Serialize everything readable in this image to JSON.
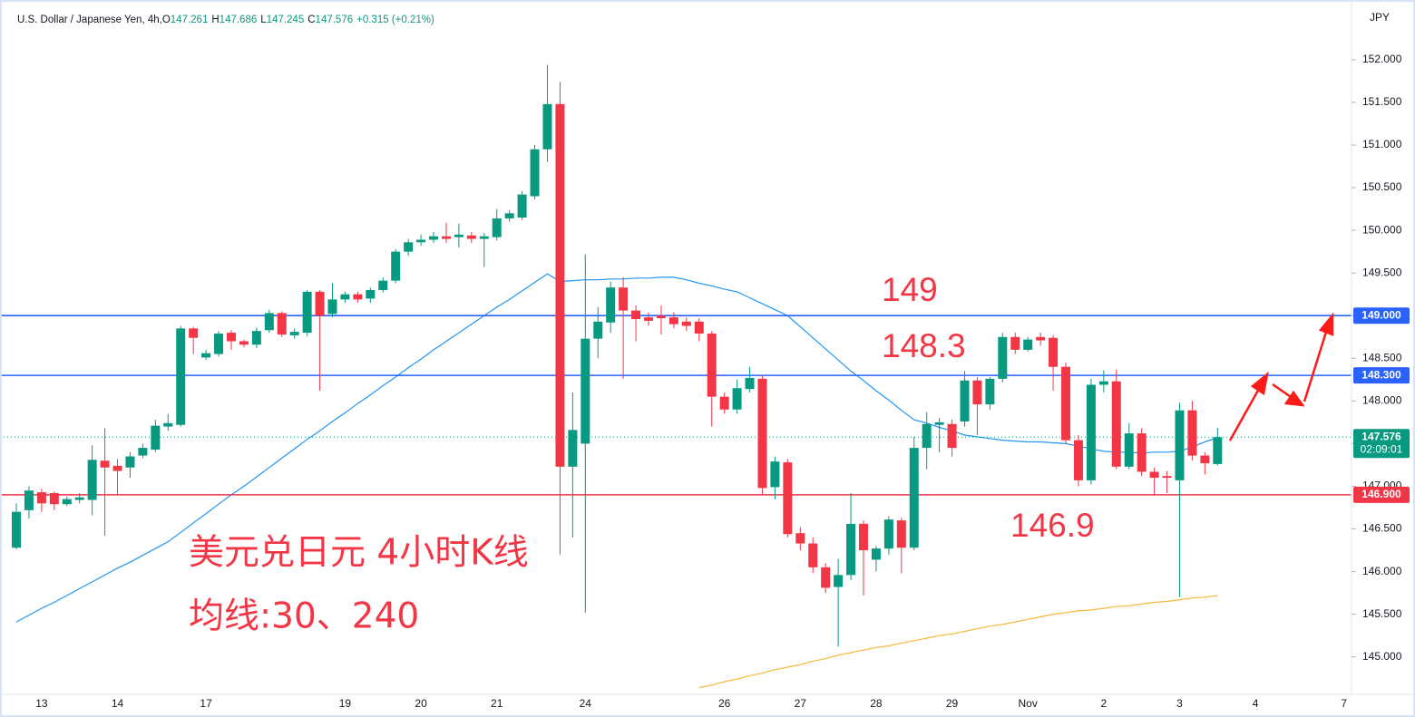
{
  "chart_data": {
    "type": "candlestick",
    "title": "U.S. Dollar / Japanese Yen, 4h,",
    "ohlc_header": [
      {
        "key": "O",
        "text": "147.261"
      },
      {
        "key": "H",
        "text": "147.686"
      },
      {
        "key": "L",
        "text": "147.245"
      },
      {
        "key": "C",
        "text": "147.576"
      }
    ],
    "change": "+0.315 (+0.21%)",
    "currency": "JPY",
    "up_color": "#089981",
    "down_color": "#f23645",
    "grid": false,
    "categories": [
      null,
      null,
      "13",
      null,
      null,
      null,
      null,
      null,
      "14",
      null,
      null,
      null,
      null,
      null,
      null,
      "17",
      null,
      null,
      null,
      null,
      null,
      null,
      null,
      null,
      null,
      null,
      "19",
      null,
      null,
      null,
      null,
      null,
      "20",
      null,
      null,
      null,
      null,
      null,
      "21",
      null,
      null,
      null,
      null,
      null,
      null,
      "24",
      null,
      null,
      null,
      null,
      null,
      null,
      null,
      null,
      null,
      null,
      "26",
      null,
      null,
      null,
      null,
      null,
      "27",
      null,
      null,
      null,
      null,
      null,
      "28",
      null,
      null,
      null,
      null,
      null,
      "29",
      null,
      null,
      null,
      null,
      null,
      "Nov",
      null,
      null,
      null,
      null,
      null,
      "2",
      null,
      null,
      null,
      null,
      null,
      "3",
      null,
      null,
      null,
      null,
      null,
      "4",
      null,
      null,
      null,
      null,
      null,
      null,
      "7"
    ],
    "open": [
      146.28,
      146.72,
      146.93,
      146.92,
      146.79,
      146.84,
      146.84,
      147.3,
      147.24,
      147.22,
      147.36,
      147.43,
      147.7,
      147.72,
      148.85,
      148.51,
      148.55,
      148.8,
      148.7,
      148.66,
      148.83,
      149.03,
      148.77,
      148.8,
      149.28,
      149.02,
      149.19,
      149.25,
      149.2,
      149.3,
      149.41,
      149.75,
      149.86,
      149.89,
      149.93,
      149.92,
      149.94,
      149.9,
      149.92,
      150.14,
      150.15,
      150.4,
      150.95,
      151.48,
      147.23,
      147.5,
      148.73,
      148.92,
      149.33,
      149.06,
      148.98,
      149.0,
      148.98,
      148.93,
      148.93,
      148.79,
      148.05,
      147.9,
      148.14,
      148.26,
      146.99,
      147.28,
      146.45,
      146.33,
      146.05,
      145.82,
      145.96,
      146.56,
      146.14,
      146.27,
      146.6,
      146.28,
      147.45,
      147.72,
      147.73,
      147.76,
      148.24,
      147.96,
      148.26,
      148.75,
      148.6,
      148.75,
      148.74,
      148.4,
      147.54,
      147.07,
      148.19,
      148.23,
      147.23,
      147.62,
      147.17,
      147.12,
      147.07,
      147.89,
      147.36,
      147.261,
      null,
      null,
      null,
      null,
      null,
      null,
      null,
      null,
      null,
      null
    ],
    "high": [
      146.8,
      147.0,
      146.97,
      146.94,
      146.88,
      146.92,
      147.48,
      147.68,
      147.32,
      147.4,
      147.5,
      147.78,
      147.85,
      148.88,
      148.87,
      148.6,
      148.82,
      148.83,
      148.72,
      148.86,
      149.07,
      149.05,
      148.85,
      149.3,
      149.3,
      149.38,
      149.28,
      149.28,
      149.33,
      149.45,
      149.78,
      149.9,
      149.95,
      149.98,
      150.09,
      150.08,
      149.98,
      149.97,
      150.25,
      150.24,
      150.46,
      151.0,
      151.94,
      151.74,
      148.1,
      149.72,
      149.1,
      149.4,
      149.45,
      149.12,
      149.04,
      149.12,
      149.04,
      148.98,
      148.97,
      148.82,
      148.1,
      148.25,
      148.4,
      148.3,
      147.35,
      147.32,
      146.52,
      146.4,
      146.1,
      146.15,
      146.92,
      146.6,
      146.3,
      146.65,
      146.63,
      147.58,
      147.87,
      147.8,
      147.78,
      148.35,
      148.28,
      148.28,
      148.8,
      148.8,
      148.75,
      148.8,
      148.77,
      148.45,
      147.6,
      148.26,
      148.36,
      148.37,
      147.74,
      147.68,
      147.22,
      147.18,
      147.98,
      148.0,
      147.4,
      147.686,
      null,
      null,
      null,
      null,
      null,
      null,
      null,
      null,
      null,
      null
    ],
    "low": [
      146.26,
      146.62,
      146.7,
      146.72,
      146.77,
      146.8,
      146.66,
      146.42,
      146.9,
      147.1,
      147.33,
      147.4,
      147.65,
      147.7,
      148.55,
      148.48,
      148.52,
      148.6,
      148.63,
      148.62,
      148.8,
      148.75,
      148.73,
      148.76,
      148.12,
      148.98,
      149.15,
      149.15,
      149.15,
      149.27,
      149.38,
      149.7,
      149.82,
      149.85,
      149.85,
      149.8,
      149.85,
      149.57,
      149.88,
      150.1,
      150.12,
      150.36,
      150.8,
      146.2,
      146.4,
      145.52,
      148.5,
      148.8,
      148.26,
      148.7,
      148.88,
      148.78,
      148.85,
      148.82,
      148.7,
      147.7,
      147.85,
      147.85,
      148.1,
      146.9,
      146.85,
      146.4,
      146.25,
      145.98,
      145.75,
      145.12,
      145.9,
      145.72,
      146.0,
      146.2,
      145.98,
      146.25,
      147.2,
      147.4,
      147.35,
      147.7,
      147.6,
      147.9,
      148.22,
      148.55,
      148.58,
      148.65,
      148.12,
      147.5,
      147.0,
      147.02,
      148.1,
      147.2,
      147.2,
      147.12,
      146.89,
      146.92,
      145.7,
      147.3,
      147.14,
      147.245,
      null,
      null,
      null,
      null,
      null,
      null,
      null,
      null,
      null,
      null
    ],
    "close": [
      146.7,
      146.95,
      146.8,
      146.79,
      146.85,
      146.87,
      147.31,
      147.22,
      147.18,
      147.35,
      147.45,
      147.71,
      147.74,
      148.85,
      148.74,
      148.56,
      148.79,
      148.7,
      148.66,
      148.82,
      149.03,
      148.78,
      148.81,
      149.28,
      149.0,
      149.19,
      149.25,
      149.19,
      149.3,
      149.41,
      149.75,
      149.86,
      149.89,
      149.93,
      149.9,
      149.95,
      149.9,
      149.93,
      150.14,
      150.2,
      150.42,
      150.95,
      151.48,
      147.23,
      147.66,
      148.73,
      148.93,
      149.33,
      149.06,
      148.96,
      148.94,
      148.97,
      148.9,
      148.88,
      148.79,
      148.05,
      147.9,
      148.15,
      148.27,
      146.98,
      147.29,
      146.44,
      146.33,
      146.05,
      145.81,
      145.96,
      146.56,
      146.25,
      146.27,
      146.61,
      146.28,
      147.45,
      147.73,
      147.75,
      147.45,
      148.24,
      147.96,
      148.26,
      148.75,
      148.6,
      148.72,
      148.71,
      148.4,
      147.54,
      147.07,
      148.19,
      148.23,
      147.23,
      147.62,
      147.17,
      147.1,
      147.1,
      147.89,
      147.36,
      147.27,
      147.576,
      null,
      null,
      null,
      null,
      null,
      null,
      null,
      null,
      null,
      null
    ],
    "moving_averages": [
      {
        "color": "#2196f3",
        "values": [
          145.41,
          145.49,
          145.57,
          145.64,
          145.72,
          145.8,
          145.88,
          145.96,
          146.04,
          146.11,
          146.19,
          146.27,
          146.35,
          146.46,
          146.57,
          146.68,
          146.79,
          146.9,
          147.0,
          147.11,
          147.22,
          147.33,
          147.44,
          147.55,
          147.65,
          147.76,
          147.86,
          147.97,
          148.07,
          148.18,
          148.28,
          148.39,
          148.49,
          148.6,
          148.7,
          148.8,
          148.9,
          149.0,
          149.1,
          149.19,
          149.29,
          149.39,
          149.49,
          149.4,
          149.41,
          149.42,
          149.42,
          149.43,
          149.43,
          149.44,
          149.44,
          149.45,
          149.45,
          149.42,
          149.38,
          149.35,
          149.31,
          149.28,
          149.21,
          149.14,
          149.07,
          149.0,
          148.87,
          148.74,
          148.61,
          148.48,
          148.35,
          148.24,
          148.12,
          148.01,
          147.89,
          147.78,
          147.74,
          147.69,
          147.65,
          147.6,
          147.58,
          147.56,
          147.54,
          147.53,
          147.52,
          147.52,
          147.51,
          147.5,
          147.47,
          147.44,
          147.41,
          147.4,
          147.4,
          147.39,
          147.4,
          147.4,
          147.41,
          147.46,
          147.52,
          147.57,
          null,
          null,
          null,
          null,
          null,
          null,
          null,
          null,
          null,
          null
        ]
      },
      {
        "color": "#f5b83d",
        "values": [
          null,
          null,
          null,
          null,
          null,
          null,
          null,
          null,
          null,
          null,
          null,
          null,
          null,
          null,
          null,
          null,
          null,
          null,
          null,
          null,
          null,
          null,
          null,
          null,
          null,
          null,
          null,
          null,
          null,
          null,
          null,
          null,
          null,
          null,
          null,
          null,
          null,
          null,
          null,
          null,
          null,
          null,
          null,
          null,
          null,
          null,
          null,
          null,
          null,
          null,
          null,
          null,
          null,
          null,
          144.64,
          144.67,
          144.71,
          144.74,
          144.78,
          144.81,
          144.85,
          144.88,
          144.91,
          144.95,
          144.98,
          145.02,
          145.05,
          145.08,
          145.11,
          145.13,
          145.16,
          145.19,
          145.22,
          145.25,
          145.27,
          145.3,
          145.33,
          145.36,
          145.38,
          145.41,
          145.44,
          145.47,
          145.5,
          145.52,
          145.54,
          145.55,
          145.57,
          145.59,
          145.6,
          145.62,
          145.64,
          145.65,
          145.67,
          145.69,
          145.7,
          145.72,
          null,
          null,
          null,
          null,
          null,
          null,
          null,
          null,
          null,
          null
        ]
      }
    ],
    "levels": [
      {
        "value": 149,
        "label": "149.000",
        "note": "149",
        "color": "#2962ff"
      },
      {
        "value": 148.3,
        "label": "148.300",
        "note": "148.3",
        "color": "#2962ff"
      },
      {
        "value": 146.9,
        "label": "146.900",
        "note": "146.9",
        "color": "#f23645"
      }
    ],
    "last_price": {
      "value": 147.576,
      "label": "147.576",
      "countdown": "02:09:01",
      "color": "#089981"
    },
    "annotations": [
      "美元兑日元 4小时K线",
      "均线:30、240"
    ],
    "ylim": [
      144.54,
      152.7
    ],
    "yticks": [
      {
        "value": 145,
        "label": "145.000"
      },
      {
        "value": 145.5,
        "label": "145.500"
      },
      {
        "value": 146,
        "label": "146.000"
      },
      {
        "value": 146.5,
        "label": "146.500"
      },
      {
        "value": 147,
        "label": "147.000"
      },
      {
        "value": 147.5,
        "label": "147.500"
      },
      {
        "value": 148,
        "label": "148.000"
      },
      {
        "value": 148.5,
        "label": "148.500"
      },
      {
        "value": 149,
        "label": "149.000"
      },
      {
        "value": 149.5,
        "label": "149.500"
      },
      {
        "value": 150,
        "label": "150.000"
      },
      {
        "value": 150.5,
        "label": "150.500"
      },
      {
        "value": 151,
        "label": "151.000"
      },
      {
        "value": 151.5,
        "label": "151.500"
      },
      {
        "value": 152,
        "label": "152.000"
      }
    ]
  }
}
